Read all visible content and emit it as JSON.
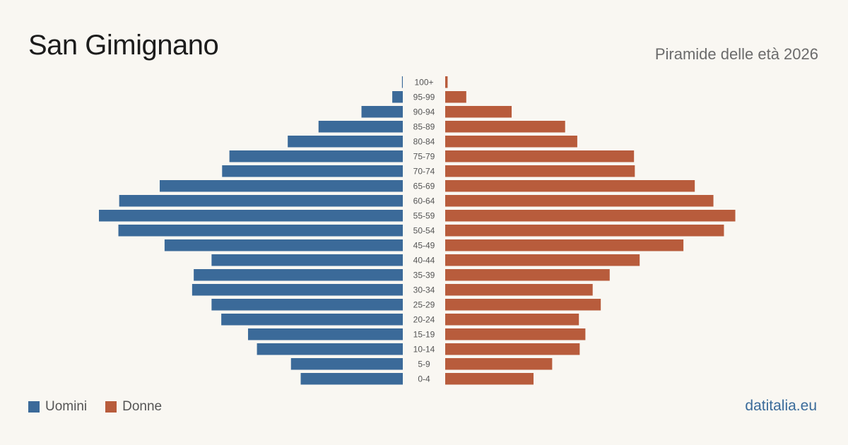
{
  "header": {
    "title": "San Gimignano",
    "subtitle": "Piramide delle età 2026"
  },
  "footer": {
    "source": "datitalia.eu"
  },
  "colors": {
    "men": "#3b6a99",
    "women": "#b85c3c",
    "label": "#555555"
  },
  "chart_data": {
    "type": "bar",
    "orientation": "horizontal-pyramid",
    "categories": [
      "100+",
      "95-99",
      "90-94",
      "85-89",
      "80-84",
      "75-79",
      "70-74",
      "65-69",
      "60-64",
      "55-59",
      "50-54",
      "45-49",
      "40-44",
      "35-39",
      "30-34",
      "25-29",
      "20-24",
      "15-19",
      "10-14",
      "5-9",
      "0-4"
    ],
    "series": [
      {
        "name": "Uomini",
        "values": [
          1,
          13,
          51,
          104,
          142,
          214,
          223,
          300,
          350,
          375,
          351,
          294,
          236,
          258,
          260,
          236,
          224,
          191,
          180,
          138,
          126
        ]
      },
      {
        "name": "Donne",
        "values": [
          3,
          26,
          82,
          148,
          163,
          233,
          234,
          308,
          331,
          358,
          344,
          294,
          240,
          203,
          182,
          192,
          165,
          173,
          166,
          132,
          109
        ]
      }
    ],
    "legend": "bottom-left",
    "grid": false
  }
}
